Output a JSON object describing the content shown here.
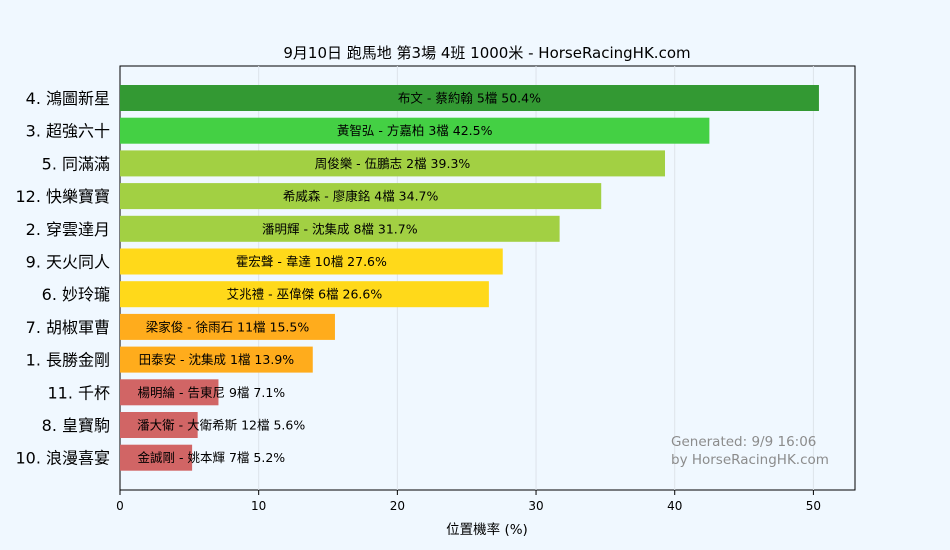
{
  "chart_data": {
    "type": "bar",
    "orientation": "horizontal",
    "title": "9月10日  跑馬地  第3場  4班  1000米 - HorseRacingHK.com",
    "xlabel": "位置機率 (%)",
    "ylabel": "",
    "xlim": [
      0,
      53
    ],
    "xticks": [
      0,
      10,
      20,
      30,
      40,
      50
    ],
    "grid": "vertical",
    "categories": [
      "4. 鴻圖新星",
      "3. 超強六十",
      "5. 同滿滿",
      "12. 快樂寶寶",
      "2. 穿雲達月",
      "9. 天火同人",
      "6. 妙玲瓏",
      "7. 胡椒軍曹",
      "1. 長勝金剛",
      "11. 千杯",
      "8. 皇寶駒",
      "10. 浪漫喜宴"
    ],
    "values": [
      50.4,
      42.5,
      39.3,
      34.7,
      31.7,
      27.6,
      26.6,
      15.5,
      13.9,
      7.1,
      5.6,
      5.2
    ],
    "bar_labels": [
      "布文 - 蔡約翰 5檔  50.4%",
      "黃智弘 - 方嘉柏 3檔  42.5%",
      "周俊樂 - 伍鵬志 2檔  39.3%",
      "希威森 - 廖康銘 4檔  34.7%",
      "潘明輝 - 沈集成 8檔  31.7%",
      "霍宏聲 - 韋達 10檔  27.6%",
      "艾兆禮 - 巫偉傑 6檔  26.6%",
      "梁家俊 - 徐雨石 11檔  15.5%",
      "田泰安 - 沈集成 1檔  13.9%",
      "楊明綸 - 告東尼 9檔  7.1%",
      "潘大衛 - 大衛希斯 12檔  5.6%",
      "金誠剛 - 姚本輝 7檔  5.2%"
    ],
    "colors": [
      "#339933",
      "#44d044",
      "#a2d043",
      "#a2d043",
      "#a2d043",
      "#ffd91a",
      "#ffd91a",
      "#ffac1c",
      "#ffac1c",
      "#d16565",
      "#d16565",
      "#d16565"
    ],
    "annotation": [
      "Generated: 9/9 16:06",
      "by HorseRacingHK.com"
    ]
  }
}
